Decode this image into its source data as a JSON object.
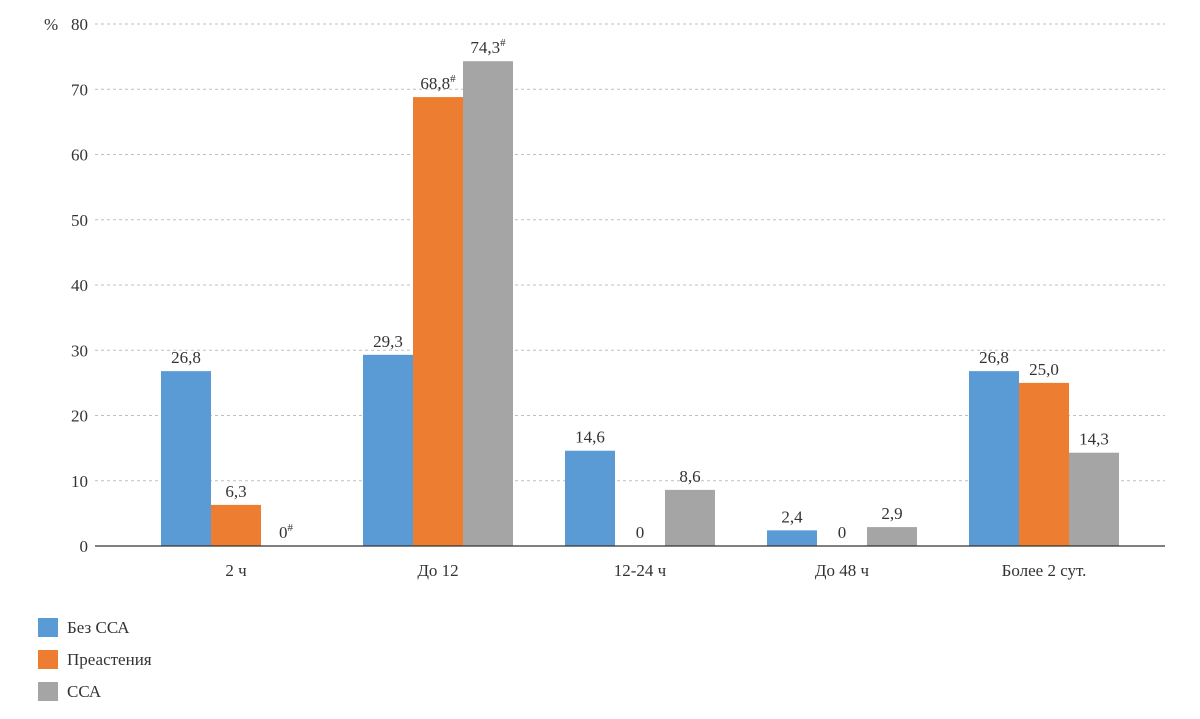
{
  "chart_data": {
    "type": "bar",
    "y_unit": "%",
    "ylim": [
      0,
      80
    ],
    "yticks": [
      "0",
      "10",
      "20",
      "30",
      "40",
      "50",
      "60",
      "70",
      "80"
    ],
    "grid": true,
    "legend_position": "bottom-left",
    "categories": [
      "2 ч",
      "До 12",
      "12-24 ч",
      "До 48 ч",
      "Более 2 сут."
    ],
    "series": [
      {
        "name": "Без ССА",
        "color": "#5b9bd5",
        "values": [
          26.8,
          29.3,
          14.6,
          2.4,
          26.8
        ],
        "labels": [
          "26,8",
          "29,3",
          "14,6",
          "2,4",
          "26,8"
        ],
        "label_marks": [
          "",
          "",
          "",
          "",
          ""
        ]
      },
      {
        "name": "Преастения",
        "color": "#ed7d31",
        "values": [
          6.3,
          68.8,
          0,
          0,
          25.0
        ],
        "labels": [
          "6,3",
          "68,8",
          "0",
          "0",
          "25,0"
        ],
        "label_marks": [
          "",
          "#",
          "",
          "",
          ""
        ]
      },
      {
        "name": "ССА",
        "color": "#a5a5a5",
        "values": [
          0,
          74.3,
          8.6,
          2.9,
          14.3
        ],
        "labels": [
          "0",
          "74,3",
          "8,6",
          "2,9",
          "14,3"
        ],
        "label_marks": [
          "#",
          "#",
          "",
          "",
          ""
        ]
      }
    ]
  }
}
